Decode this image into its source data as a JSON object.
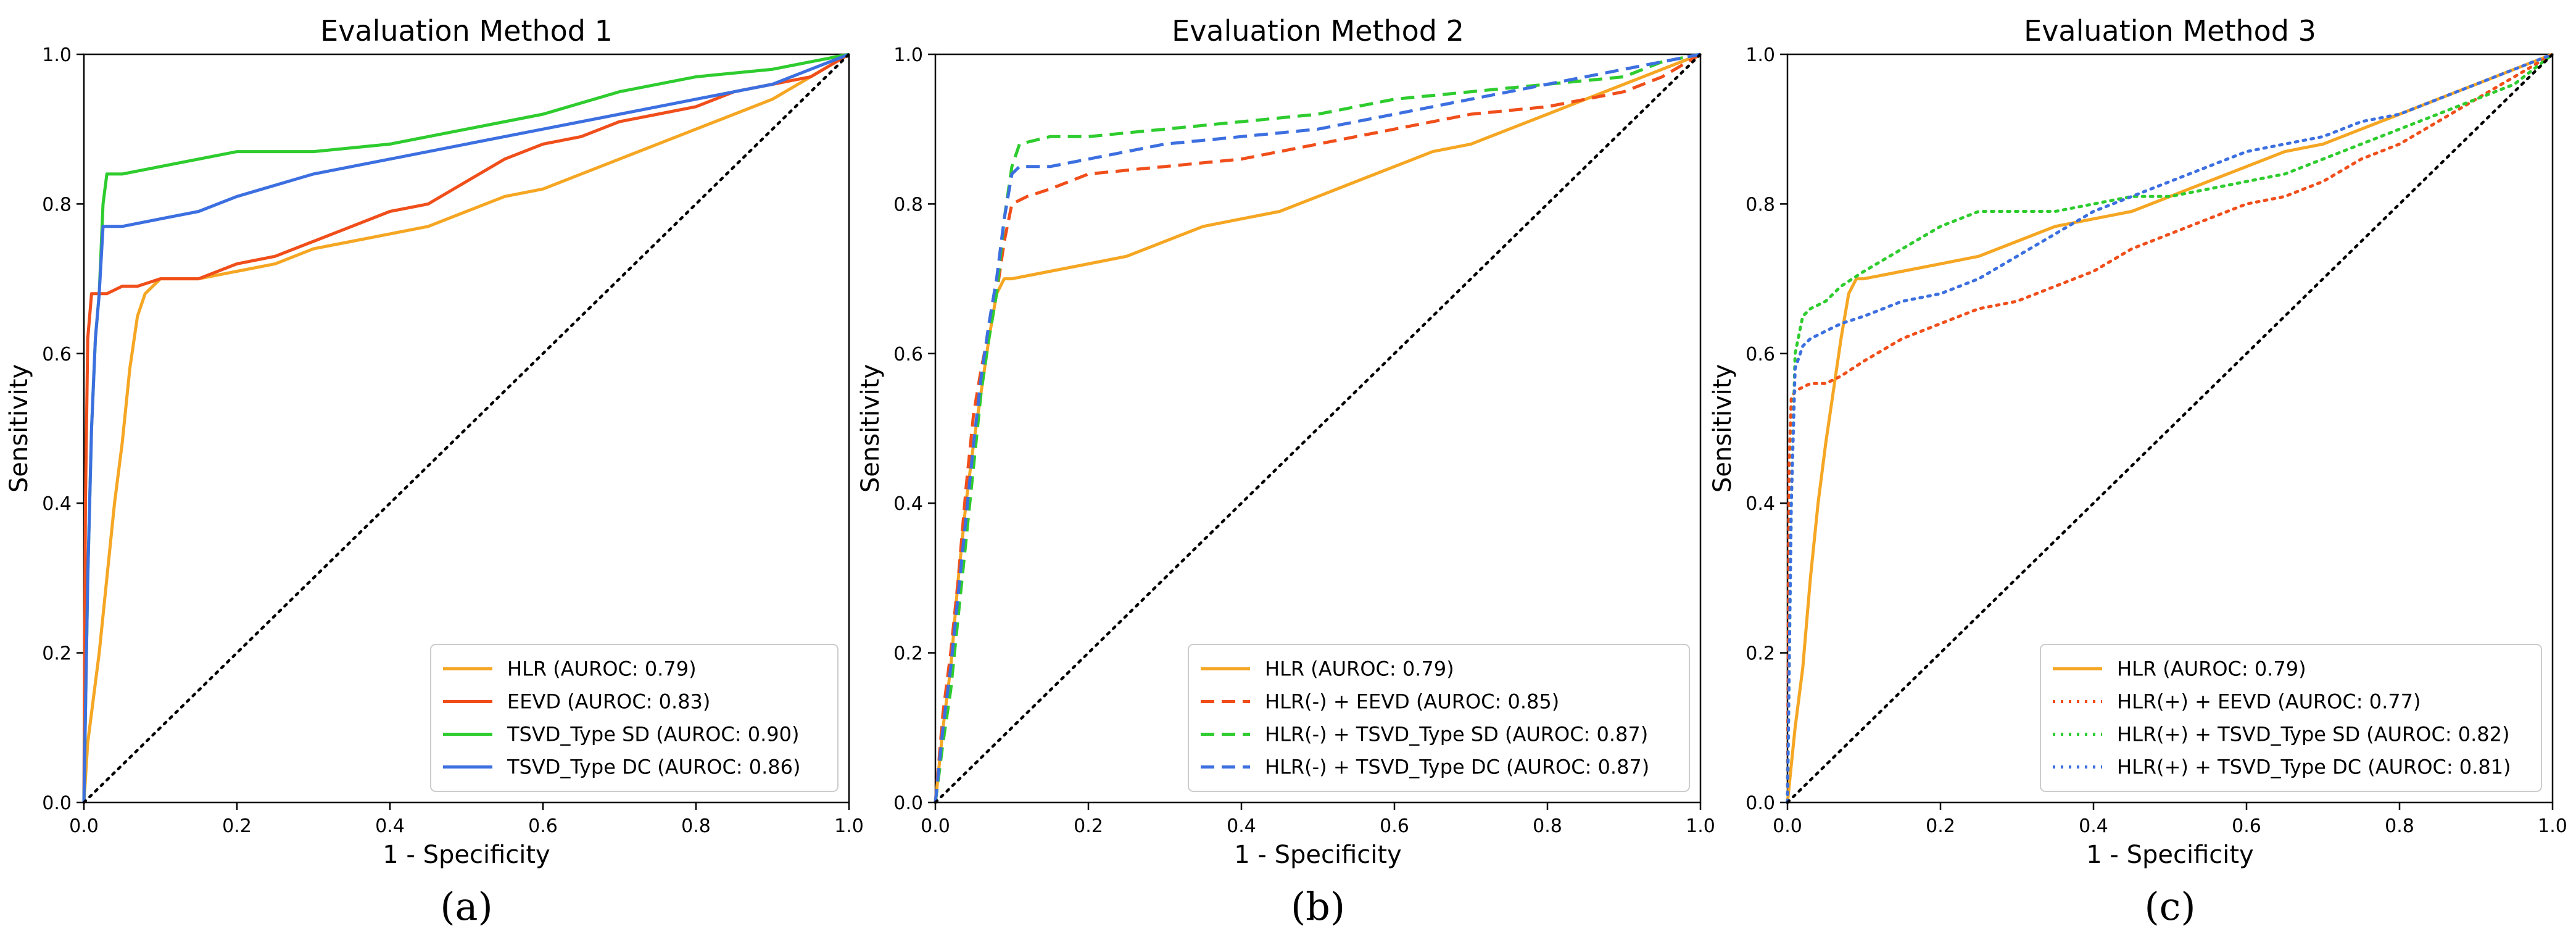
{
  "chart_data": [
    {
      "type": "line",
      "panel_label": "(a)",
      "title": "Evaluation Method 1",
      "xlabel": "1 - Specificity",
      "ylabel": "Sensitivity",
      "xlim": [
        0,
        1
      ],
      "ylim": [
        0,
        1
      ],
      "xticks": [
        "0.0",
        "0.2",
        "0.4",
        "0.6",
        "0.8",
        "1.0"
      ],
      "yticks": [
        "0.0",
        "0.2",
        "0.4",
        "0.6",
        "0.8",
        "1.0"
      ],
      "legend_position": "lower-right",
      "grid": false,
      "series": [
        {
          "name": "HLR (AUROC: 0.79)",
          "color": "#f5a623",
          "dash": "solid",
          "x": [
            0,
            0.005,
            0.01,
            0.02,
            0.03,
            0.04,
            0.05,
            0.06,
            0.07,
            0.08,
            0.09,
            0.1,
            0.15,
            0.2,
            0.25,
            0.3,
            0.35,
            0.4,
            0.45,
            0.5,
            0.55,
            0.6,
            0.65,
            0.7,
            0.75,
            0.8,
            0.85,
            0.9,
            0.95,
            1.0
          ],
          "y": [
            0,
            0.08,
            0.12,
            0.2,
            0.3,
            0.4,
            0.48,
            0.58,
            0.65,
            0.68,
            0.69,
            0.7,
            0.7,
            0.71,
            0.72,
            0.74,
            0.75,
            0.76,
            0.77,
            0.79,
            0.81,
            0.82,
            0.84,
            0.86,
            0.88,
            0.9,
            0.92,
            0.94,
            0.97,
            1.0
          ]
        },
        {
          "name": "EEVD (AUROC: 0.83)",
          "color": "#f04e1a",
          "dash": "solid",
          "x": [
            0,
            0.002,
            0.005,
            0.01,
            0.03,
            0.05,
            0.07,
            0.1,
            0.15,
            0.2,
            0.25,
            0.3,
            0.35,
            0.4,
            0.45,
            0.5,
            0.55,
            0.6,
            0.65,
            0.7,
            0.75,
            0.8,
            0.85,
            0.9,
            0.95,
            1.0
          ],
          "y": [
            0,
            0.4,
            0.62,
            0.68,
            0.68,
            0.69,
            0.69,
            0.7,
            0.7,
            0.72,
            0.73,
            0.75,
            0.77,
            0.79,
            0.8,
            0.83,
            0.86,
            0.88,
            0.89,
            0.91,
            0.92,
            0.93,
            0.95,
            0.96,
            0.97,
            1.0
          ]
        },
        {
          "name": "TSVD_Type SD (AUROC: 0.90)",
          "color": "#2ecc2e",
          "dash": "solid",
          "x": [
            0,
            0.005,
            0.01,
            0.015,
            0.02,
            0.025,
            0.03,
            0.05,
            0.1,
            0.2,
            0.3,
            0.4,
            0.5,
            0.6,
            0.7,
            0.8,
            0.9,
            0.95,
            1.0
          ],
          "y": [
            0,
            0.3,
            0.5,
            0.62,
            0.68,
            0.8,
            0.84,
            0.84,
            0.85,
            0.87,
            0.87,
            0.88,
            0.9,
            0.92,
            0.95,
            0.97,
            0.98,
            0.99,
            1.0
          ]
        },
        {
          "name": "TSVD_Type DC (AUROC: 0.86)",
          "color": "#3c6fe0",
          "dash": "solid",
          "x": [
            0,
            0.005,
            0.01,
            0.015,
            0.02,
            0.025,
            0.05,
            0.1,
            0.15,
            0.2,
            0.3,
            0.4,
            0.5,
            0.6,
            0.7,
            0.8,
            0.9,
            0.95,
            1.0
          ],
          "y": [
            0,
            0.3,
            0.5,
            0.62,
            0.68,
            0.77,
            0.77,
            0.78,
            0.79,
            0.81,
            0.84,
            0.86,
            0.88,
            0.9,
            0.92,
            0.94,
            0.96,
            0.98,
            1.0
          ]
        },
        {
          "name": "",
          "color": "#000000",
          "dash": "dotted",
          "x": [
            0,
            1
          ],
          "y": [
            0,
            1
          ]
        }
      ]
    },
    {
      "type": "line",
      "panel_label": "(b)",
      "title": "Evaluation Method 2",
      "xlabel": "1 - Specificity",
      "ylabel": "Sensitivity",
      "xlim": [
        0,
        1
      ],
      "ylim": [
        0,
        1
      ],
      "xticks": [
        "0.0",
        "0.2",
        "0.4",
        "0.6",
        "0.8",
        "1.0"
      ],
      "yticks": [
        "0.0",
        "0.2",
        "0.4",
        "0.6",
        "0.8",
        "1.0"
      ],
      "legend_position": "lower-right",
      "grid": false,
      "series": [
        {
          "name": "HLR (AUROC: 0.79)",
          "color": "#f5a623",
          "dash": "solid",
          "x": [
            0,
            0.01,
            0.02,
            0.03,
            0.04,
            0.05,
            0.06,
            0.07,
            0.08,
            0.09,
            0.1,
            0.15,
            0.2,
            0.25,
            0.3,
            0.35,
            0.4,
            0.45,
            0.5,
            0.55,
            0.6,
            0.65,
            0.7,
            0.75,
            0.8,
            0.85,
            0.9,
            0.95,
            1.0
          ],
          "y": [
            0,
            0.1,
            0.18,
            0.3,
            0.4,
            0.48,
            0.55,
            0.62,
            0.68,
            0.7,
            0.7,
            0.71,
            0.72,
            0.73,
            0.75,
            0.77,
            0.78,
            0.79,
            0.81,
            0.83,
            0.85,
            0.87,
            0.88,
            0.9,
            0.92,
            0.94,
            0.96,
            0.98,
            1.0
          ]
        },
        {
          "name": "HLR(-) + EEVD (AUROC: 0.85)",
          "color": "#f04e1a",
          "dash": "dashed",
          "x": [
            0,
            0.01,
            0.02,
            0.03,
            0.04,
            0.05,
            0.06,
            0.07,
            0.08,
            0.09,
            0.1,
            0.12,
            0.15,
            0.2,
            0.3,
            0.4,
            0.5,
            0.6,
            0.7,
            0.8,
            0.9,
            0.95,
            1.0
          ],
          "y": [
            0,
            0.12,
            0.2,
            0.3,
            0.42,
            0.52,
            0.58,
            0.63,
            0.68,
            0.75,
            0.8,
            0.81,
            0.82,
            0.84,
            0.85,
            0.86,
            0.88,
            0.9,
            0.92,
            0.93,
            0.95,
            0.97,
            1.0
          ]
        },
        {
          "name": "HLR(-) + TSVD_Type SD (AUROC: 0.87)",
          "color": "#2ecc2e",
          "dash": "dashed",
          "x": [
            0,
            0.01,
            0.02,
            0.03,
            0.04,
            0.05,
            0.06,
            0.07,
            0.08,
            0.09,
            0.1,
            0.11,
            0.15,
            0.2,
            0.3,
            0.4,
            0.5,
            0.6,
            0.7,
            0.8,
            0.9,
            0.95,
            1.0
          ],
          "y": [
            0,
            0.08,
            0.15,
            0.25,
            0.35,
            0.45,
            0.55,
            0.62,
            0.68,
            0.78,
            0.85,
            0.88,
            0.89,
            0.89,
            0.9,
            0.91,
            0.92,
            0.94,
            0.95,
            0.96,
            0.97,
            0.99,
            1.0
          ]
        },
        {
          "name": "HLR(-) + TSVD_Type DC (AUROC: 0.87)",
          "color": "#3c6fe0",
          "dash": "dashed",
          "x": [
            0,
            0.01,
            0.02,
            0.03,
            0.04,
            0.05,
            0.06,
            0.07,
            0.08,
            0.09,
            0.1,
            0.11,
            0.15,
            0.2,
            0.3,
            0.4,
            0.5,
            0.6,
            0.7,
            0.8,
            0.9,
            0.95,
            1.0
          ],
          "y": [
            0,
            0.1,
            0.18,
            0.28,
            0.38,
            0.48,
            0.57,
            0.64,
            0.7,
            0.78,
            0.84,
            0.85,
            0.85,
            0.86,
            0.88,
            0.89,
            0.9,
            0.92,
            0.94,
            0.96,
            0.98,
            0.99,
            1.0
          ]
        },
        {
          "name": "",
          "color": "#000000",
          "dash": "dotted",
          "x": [
            0,
            1
          ],
          "y": [
            0,
            1
          ]
        }
      ]
    },
    {
      "type": "line",
      "panel_label": "(c)",
      "title": "Evaluation Method 3",
      "xlabel": "1 - Specificity",
      "ylabel": "Sensitivity",
      "xlim": [
        0,
        1
      ],
      "ylim": [
        0,
        1
      ],
      "xticks": [
        "0.0",
        "0.2",
        "0.4",
        "0.6",
        "0.8",
        "1.0"
      ],
      "yticks": [
        "0.0",
        "0.2",
        "0.4",
        "0.6",
        "0.8",
        "1.0"
      ],
      "legend_position": "lower-right",
      "grid": false,
      "series": [
        {
          "name": "HLR (AUROC: 0.79)",
          "color": "#f5a623",
          "dash": "solid",
          "x": [
            0,
            0.01,
            0.02,
            0.03,
            0.04,
            0.05,
            0.06,
            0.07,
            0.08,
            0.09,
            0.1,
            0.15,
            0.2,
            0.25,
            0.3,
            0.35,
            0.4,
            0.45,
            0.5,
            0.55,
            0.6,
            0.65,
            0.7,
            0.75,
            0.8,
            0.85,
            0.9,
            0.95,
            1.0
          ],
          "y": [
            0,
            0.1,
            0.18,
            0.3,
            0.4,
            0.48,
            0.55,
            0.62,
            0.68,
            0.7,
            0.7,
            0.71,
            0.72,
            0.73,
            0.75,
            0.77,
            0.78,
            0.79,
            0.81,
            0.83,
            0.85,
            0.87,
            0.88,
            0.9,
            0.92,
            0.94,
            0.96,
            0.98,
            1.0
          ]
        },
        {
          "name": "HLR(+) + EEVD (AUROC: 0.77)",
          "color": "#f04e1a",
          "dash": "dotted",
          "x": [
            0,
            0.002,
            0.005,
            0.01,
            0.03,
            0.05,
            0.07,
            0.1,
            0.15,
            0.2,
            0.25,
            0.3,
            0.35,
            0.4,
            0.45,
            0.5,
            0.55,
            0.6,
            0.65,
            0.7,
            0.75,
            0.8,
            0.85,
            0.9,
            0.95,
            1.0
          ],
          "y": [
            0,
            0.45,
            0.54,
            0.55,
            0.56,
            0.56,
            0.57,
            0.59,
            0.62,
            0.64,
            0.66,
            0.67,
            0.69,
            0.71,
            0.74,
            0.76,
            0.78,
            0.8,
            0.81,
            0.83,
            0.86,
            0.88,
            0.91,
            0.94,
            0.97,
            1.0
          ]
        },
        {
          "name": "HLR(+) + TSVD_Type SD (AUROC: 0.82)",
          "color": "#2ecc2e",
          "dash": "dotted",
          "x": [
            0,
            0.005,
            0.01,
            0.02,
            0.03,
            0.05,
            0.07,
            0.1,
            0.15,
            0.2,
            0.25,
            0.3,
            0.35,
            0.4,
            0.45,
            0.5,
            0.55,
            0.6,
            0.65,
            0.7,
            0.75,
            0.8,
            0.85,
            0.9,
            0.95,
            1.0
          ],
          "y": [
            0,
            0.4,
            0.6,
            0.65,
            0.66,
            0.67,
            0.69,
            0.71,
            0.74,
            0.77,
            0.79,
            0.79,
            0.79,
            0.8,
            0.81,
            0.81,
            0.82,
            0.83,
            0.84,
            0.86,
            0.88,
            0.9,
            0.92,
            0.94,
            0.96,
            1.0
          ]
        },
        {
          "name": "HLR(+) + TSVD_Type DC (AUROC: 0.81)",
          "color": "#3c6fe0",
          "dash": "dotted",
          "x": [
            0,
            0.005,
            0.01,
            0.02,
            0.03,
            0.05,
            0.07,
            0.1,
            0.15,
            0.2,
            0.25,
            0.3,
            0.35,
            0.4,
            0.45,
            0.5,
            0.55,
            0.6,
            0.65,
            0.7,
            0.75,
            0.8,
            0.85,
            0.9,
            0.95,
            1.0
          ],
          "y": [
            0,
            0.4,
            0.58,
            0.61,
            0.62,
            0.63,
            0.64,
            0.65,
            0.67,
            0.68,
            0.7,
            0.73,
            0.76,
            0.79,
            0.81,
            0.83,
            0.85,
            0.87,
            0.88,
            0.89,
            0.91,
            0.92,
            0.94,
            0.96,
            0.98,
            1.0
          ]
        },
        {
          "name": "",
          "color": "#000000",
          "dash": "dotted",
          "x": [
            0,
            1
          ],
          "y": [
            0,
            1
          ]
        }
      ]
    }
  ]
}
